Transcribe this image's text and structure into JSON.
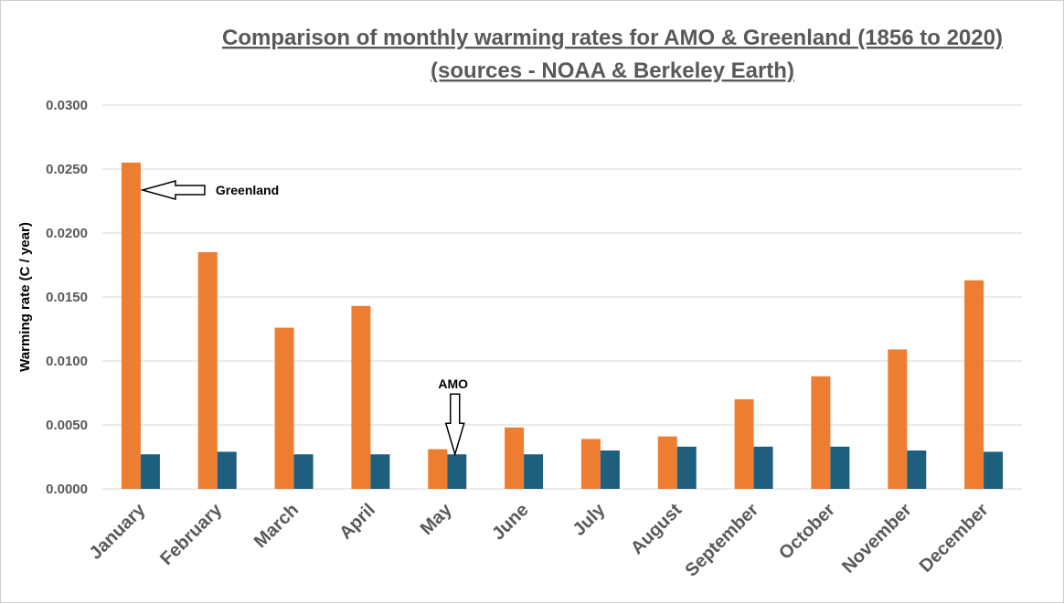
{
  "chart_data": {
    "type": "bar",
    "title_line1": "Comparison of monthly warming rates for AMO & Greenland (1856 to 2020)",
    "title_line2": "(sources -  NOAA & Berkeley Earth)",
    "ylabel": "Warming rate (C / year)",
    "xlabel": "",
    "ylim": [
      0,
      0.03
    ],
    "yticks": [
      "0.0000",
      "0.0050",
      "0.0100",
      "0.0150",
      "0.0200",
      "0.0250",
      "0.0300"
    ],
    "grid": true,
    "categories": [
      "January",
      "February",
      "March",
      "April",
      "May",
      "June",
      "July",
      "August",
      "September",
      "October",
      "November",
      "December"
    ],
    "series": [
      {
        "color": "#ED7D31",
        "values": [
          0.0255,
          0.0185,
          0.0126,
          0.0143,
          0.0031,
          0.0048,
          0.0039,
          0.0041,
          0.007,
          0.0088,
          0.0109,
          0.0163
        ]
      },
      {
        "color": "#1F5F7E",
        "values": [
          0.0027,
          0.0029,
          0.0027,
          0.0027,
          0.0027,
          0.0027,
          0.003,
          0.0033,
          0.0033,
          0.0033,
          0.003,
          0.0029
        ]
      }
    ],
    "annotations": [
      {
        "text": "Greenland",
        "target_category": "January",
        "target_series": 0
      },
      {
        "text": "AMO",
        "target_category": "May",
        "target_series": 1
      }
    ]
  }
}
